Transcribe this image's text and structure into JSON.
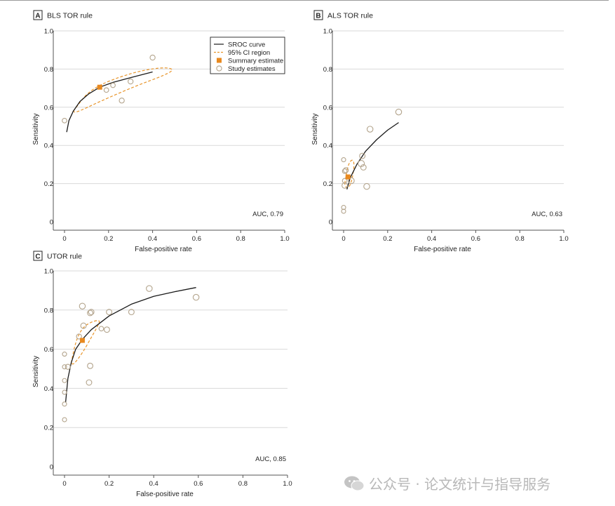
{
  "figure": {
    "watermark": "公众号 · 论文统计与指导服务",
    "colors": {
      "curve": "#1a1a1a",
      "ci": "#e8952b",
      "summary": "#e8891f",
      "study": "#b3a48c",
      "grid": "#d9d9d9",
      "axis": "#555555"
    }
  },
  "legend": {
    "sroc": "SROC curve",
    "ci": "95% CI region",
    "summary": "Summary estimate",
    "study": "Study estimates"
  },
  "chart_data": [
    {
      "panel": "A",
      "title": "BLS TOR rule",
      "type": "scatter",
      "xlabel": "False-positive rate",
      "ylabel": "Sensitivity",
      "xlim": [
        0,
        1.0
      ],
      "ylim": [
        0,
        1.0
      ],
      "xticks": [
        "0",
        "0.2",
        "0.4",
        "0.6",
        "0.8",
        "1.0"
      ],
      "yticks": [
        "0",
        "0.2",
        "0.4",
        "0.6",
        "0.8",
        "1.0"
      ],
      "grid": "horizontal",
      "legend_position": "top-right",
      "auc": "AUC, 0.79",
      "sroc": [
        [
          0.01,
          0.47
        ],
        [
          0.02,
          0.53
        ],
        [
          0.04,
          0.58
        ],
        [
          0.07,
          0.63
        ],
        [
          0.11,
          0.67
        ],
        [
          0.16,
          0.705
        ],
        [
          0.22,
          0.73
        ],
        [
          0.3,
          0.755
        ],
        [
          0.4,
          0.785
        ]
      ],
      "summary": {
        "x": 0.16,
        "y": 0.705
      },
      "ci_region": [
        [
          0.04,
          0.58
        ],
        [
          0.12,
          0.7
        ],
        [
          0.3,
          0.78
        ],
        [
          0.44,
          0.81
        ],
        [
          0.5,
          0.8
        ],
        [
          0.46,
          0.77
        ],
        [
          0.32,
          0.71
        ],
        [
          0.16,
          0.63
        ],
        [
          0.05,
          0.57
        ],
        [
          0.04,
          0.58
        ]
      ],
      "studies": [
        {
          "x": 0.0,
          "y": 0.53,
          "size": 0.6
        },
        {
          "x": 0.19,
          "y": 0.69,
          "size": 0.6
        },
        {
          "x": 0.22,
          "y": 0.715,
          "size": 0.6
        },
        {
          "x": 0.26,
          "y": 0.635,
          "size": 0.7
        },
        {
          "x": 0.3,
          "y": 0.735,
          "size": 0.7
        },
        {
          "x": 0.4,
          "y": 0.86,
          "size": 0.7
        }
      ]
    },
    {
      "panel": "B",
      "title": "ALS TOR rule",
      "type": "scatter",
      "xlabel": "False-positive rate",
      "ylabel": "Sensitivity",
      "xlim": [
        0,
        1.0
      ],
      "ylim": [
        0,
        1.0
      ],
      "xticks": [
        "0",
        "0.2",
        "0.4",
        "0.6",
        "0.8",
        "1.0"
      ],
      "yticks": [
        "0",
        "0.2",
        "0.4",
        "0.6",
        "0.8",
        "1.0"
      ],
      "grid": "horizontal",
      "auc": "AUC, 0.63",
      "sroc": [
        [
          0.015,
          0.17
        ],
        [
          0.03,
          0.23
        ],
        [
          0.06,
          0.3
        ],
        [
          0.1,
          0.37
        ],
        [
          0.15,
          0.43
        ],
        [
          0.2,
          0.48
        ],
        [
          0.25,
          0.52
        ]
      ],
      "summary": {
        "x": 0.02,
        "y": 0.235
      },
      "ci_region": [
        [
          0.005,
          0.2
        ],
        [
          0.02,
          0.3
        ],
        [
          0.04,
          0.33
        ],
        [
          0.05,
          0.3
        ],
        [
          0.035,
          0.2
        ],
        [
          0.015,
          0.17
        ],
        [
          0.005,
          0.2
        ]
      ],
      "studies": [
        {
          "x": 0.0,
          "y": 0.055,
          "size": 0.5
        },
        {
          "x": 0.0,
          "y": 0.075,
          "size": 0.5
        },
        {
          "x": 0.005,
          "y": 0.19,
          "size": 0.8
        },
        {
          "x": 0.005,
          "y": 0.215,
          "size": 0.6
        },
        {
          "x": 0.005,
          "y": 0.265,
          "size": 0.6
        },
        {
          "x": 0.01,
          "y": 0.27,
          "size": 0.7
        },
        {
          "x": 0.0,
          "y": 0.325,
          "size": 0.5
        },
        {
          "x": 0.035,
          "y": 0.215,
          "size": 0.9
        },
        {
          "x": 0.08,
          "y": 0.305,
          "size": 1.0
        },
        {
          "x": 0.085,
          "y": 0.345,
          "size": 0.8
        },
        {
          "x": 0.09,
          "y": 0.285,
          "size": 0.8
        },
        {
          "x": 0.105,
          "y": 0.185,
          "size": 0.9
        },
        {
          "x": 0.12,
          "y": 0.485,
          "size": 0.9
        },
        {
          "x": 0.25,
          "y": 0.575,
          "size": 0.9
        }
      ]
    },
    {
      "panel": "C",
      "title": "UTOR rule",
      "type": "scatter",
      "xlabel": "False-positive rate",
      "ylabel": "Sensitivity",
      "xlim": [
        0,
        1.0
      ],
      "ylim": [
        0,
        1.0
      ],
      "xticks": [
        "0",
        "0.2",
        "0.4",
        "0.6",
        "0.8",
        "1.0"
      ],
      "yticks": [
        "0",
        "0.2",
        "0.4",
        "0.6",
        "0.8",
        "1.0"
      ],
      "grid": "horizontal",
      "auc": "AUC, 0.85",
      "sroc": [
        [
          0.005,
          0.33
        ],
        [
          0.015,
          0.45
        ],
        [
          0.03,
          0.53
        ],
        [
          0.05,
          0.6
        ],
        [
          0.08,
          0.65
        ],
        [
          0.12,
          0.7
        ],
        [
          0.2,
          0.77
        ],
        [
          0.3,
          0.83
        ],
        [
          0.4,
          0.87
        ],
        [
          0.5,
          0.895
        ],
        [
          0.59,
          0.915
        ]
      ],
      "summary": {
        "x": 0.08,
        "y": 0.645
      },
      "ci_region": [
        [
          0.03,
          0.53
        ],
        [
          0.05,
          0.64
        ],
        [
          0.08,
          0.71
        ],
        [
          0.12,
          0.74
        ],
        [
          0.16,
          0.75
        ],
        [
          0.15,
          0.72
        ],
        [
          0.12,
          0.66
        ],
        [
          0.08,
          0.58
        ],
        [
          0.04,
          0.52
        ],
        [
          0.03,
          0.53
        ]
      ],
      "studies": [
        {
          "x": 0.0,
          "y": 0.24,
          "size": 0.5
        },
        {
          "x": 0.0,
          "y": 0.32,
          "size": 0.5
        },
        {
          "x": 0.0,
          "y": 0.38,
          "size": 0.5
        },
        {
          "x": 0.0,
          "y": 0.44,
          "size": 0.5
        },
        {
          "x": 0.0,
          "y": 0.51,
          "size": 0.5
        },
        {
          "x": 0.0,
          "y": 0.575,
          "size": 0.5
        },
        {
          "x": 0.015,
          "y": 0.51,
          "size": 0.7
        },
        {
          "x": 0.065,
          "y": 0.665,
          "size": 0.7
        },
        {
          "x": 0.08,
          "y": 0.82,
          "size": 0.9
        },
        {
          "x": 0.085,
          "y": 0.72,
          "size": 0.8
        },
        {
          "x": 0.11,
          "y": 0.43,
          "size": 0.8
        },
        {
          "x": 0.115,
          "y": 0.515,
          "size": 0.8
        },
        {
          "x": 0.115,
          "y": 0.785,
          "size": 0.8
        },
        {
          "x": 0.12,
          "y": 0.79,
          "size": 0.8
        },
        {
          "x": 0.165,
          "y": 0.705,
          "size": 0.6
        },
        {
          "x": 0.19,
          "y": 0.7,
          "size": 0.8
        },
        {
          "x": 0.2,
          "y": 0.79,
          "size": 0.8
        },
        {
          "x": 0.3,
          "y": 0.79,
          "size": 0.8
        },
        {
          "x": 0.38,
          "y": 0.91,
          "size": 0.9
        },
        {
          "x": 0.59,
          "y": 0.865,
          "size": 0.9
        }
      ]
    }
  ]
}
